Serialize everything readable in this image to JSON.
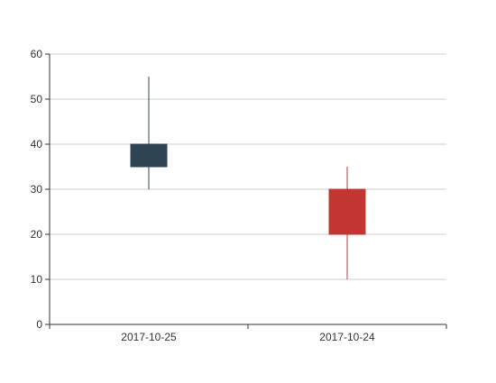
{
  "chart_data": {
    "type": "candlestick",
    "title": "",
    "xlabel": "",
    "ylabel": "",
    "categories": [
      "2017-10-25",
      "2017-10-24"
    ],
    "candles": [
      {
        "date": "2017-10-25",
        "open": 35,
        "close": 40,
        "low": 30,
        "high": 55
      },
      {
        "date": "2017-10-24",
        "open": 20,
        "close": 30,
        "low": 10,
        "high": 35
      }
    ],
    "ylim": [
      0,
      60
    ],
    "yticks": [
      0,
      10,
      20,
      30,
      40,
      50,
      60
    ],
    "grid": true,
    "colors": {
      "candle_0": "#2f4554",
      "candle_1": "#c23531",
      "grid": "#cccccc",
      "axis": "#333333",
      "label": "#333333"
    }
  }
}
